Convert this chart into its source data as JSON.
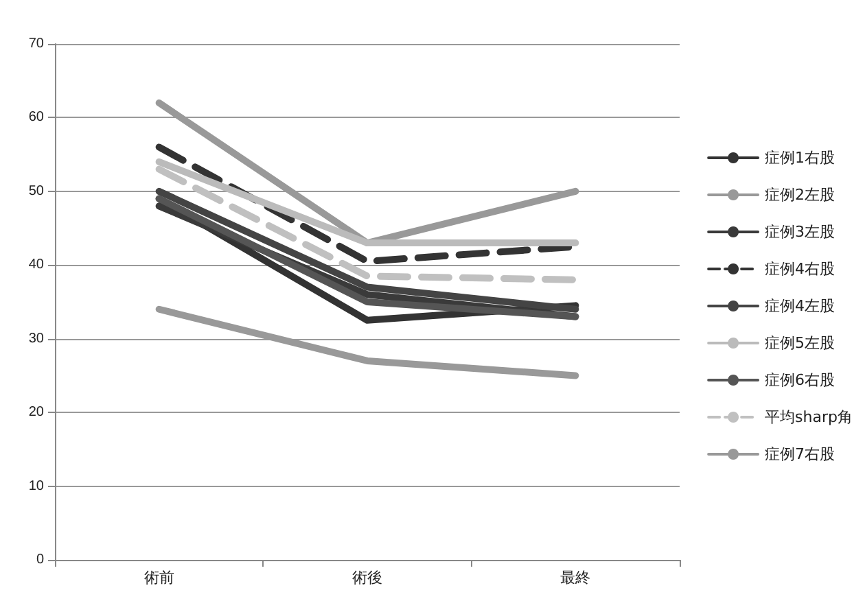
{
  "chart_data": {
    "type": "line",
    "categories": [
      "術前",
      "術後",
      "最終"
    ],
    "ylim": [
      0,
      70
    ],
    "yticks": [
      0,
      10,
      20,
      30,
      40,
      50,
      60,
      70
    ],
    "grid": "y",
    "legend": "right",
    "marker": "none",
    "series": [
      {
        "name": "症例1右股",
        "color": "#333333",
        "values": [
          49,
          32.5,
          34.5
        ]
      },
      {
        "name": "症例2左股",
        "color": "#999999",
        "values": [
          62,
          43,
          50
        ]
      },
      {
        "name": "症例3左股",
        "color": "#3a3a3a",
        "values": [
          48,
          36,
          33
        ]
      },
      {
        "name": "症例4右股",
        "color": "#333333",
        "line_style": "dashed",
        "values": [
          56,
          40.5,
          42.5
        ]
      },
      {
        "name": "症例4左股",
        "color": "#444444",
        "values": [
          50,
          37,
          34
        ]
      },
      {
        "name": "症例5左股",
        "color": "#bbbbbb",
        "values": [
          54,
          43,
          43
        ]
      },
      {
        "name": "症例6右股",
        "color": "#555555",
        "values": [
          49,
          35,
          33
        ]
      },
      {
        "name": "平均sharp角",
        "color": "#c0c0c0",
        "line_style": "dashed",
        "values": [
          53,
          38.5,
          38
        ]
      },
      {
        "name": "症例7右股",
        "color": "#999999",
        "values": [
          34,
          27,
          25
        ]
      }
    ]
  }
}
